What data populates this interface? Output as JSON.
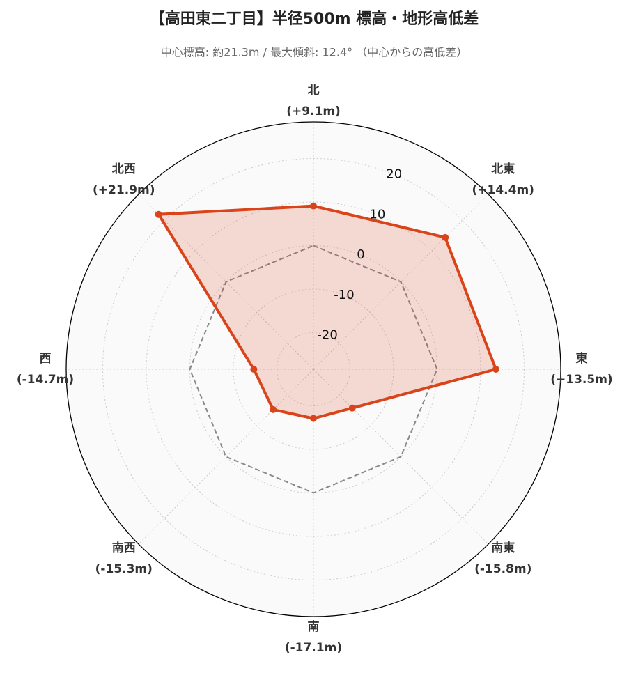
{
  "chart_data": {
    "type": "radar",
    "title": "【高田東二丁目】半径500m 標高・地形高低差",
    "subtitle": "中心標高: 約21.3m / 最大傾斜: 12.4° （中心からの高低差）",
    "categories": [
      "北",
      "北東",
      "東",
      "南東",
      "南",
      "南西",
      "西",
      "北西"
    ],
    "values": [
      9.1,
      14.4,
      13.5,
      -15.8,
      -17.1,
      -15.3,
      -14.7,
      21.9
    ],
    "value_labels": [
      "(+9.1m)",
      "(+14.4m)",
      "(+13.5m)",
      "(-15.8m)",
      "(-17.1m)",
      "(-15.3m)",
      "(-14.7m)",
      "(+21.9m)"
    ],
    "color": "#d9441a",
    "ylim": [
      -28.4,
      28.4
    ],
    "yticks": [
      -20,
      -10,
      0,
      10,
      20
    ],
    "grid": true
  }
}
